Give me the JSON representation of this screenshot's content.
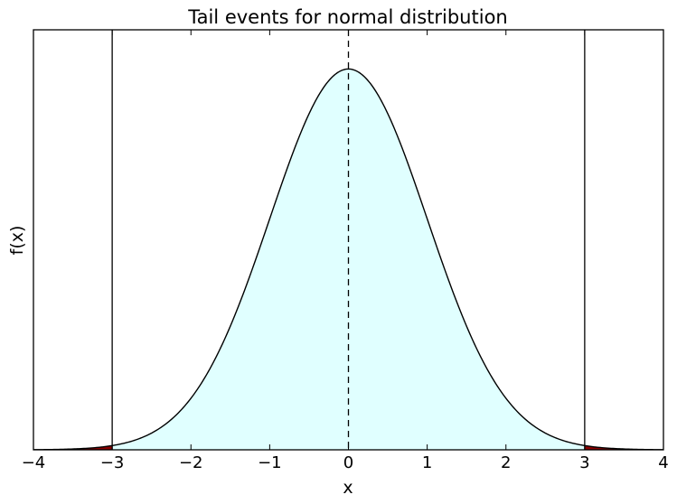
{
  "chart_data": {
    "type": "area",
    "title": "Tail events for normal distribution",
    "xlabel": "x",
    "ylabel": "f(x)",
    "xlim": [
      -4,
      4
    ],
    "ylim": [
      0,
      0.44
    ],
    "grid": false,
    "legend": "none",
    "x_ticks": [
      -4,
      -3,
      -2,
      -1,
      0,
      1,
      2,
      3,
      4
    ],
    "x_tick_labels": [
      "−4",
      "−3",
      "−2",
      "−1",
      "0",
      "1",
      "2",
      "3",
      "4"
    ],
    "y_ticks": [],
    "series": [
      {
        "distribution": "normal",
        "mean": 0,
        "sd": 1,
        "x": [
          -4,
          -3.5,
          -3,
          -2.5,
          -2,
          -1.5,
          -1,
          -0.5,
          0,
          0.5,
          1,
          1.5,
          2,
          2.5,
          3,
          3.5,
          4
        ],
        "y": [
          0.0001,
          0.0009,
          0.0044,
          0.0175,
          0.054,
          0.1295,
          0.242,
          0.3521,
          0.3989,
          0.3521,
          0.242,
          0.1295,
          0.054,
          0.0175,
          0.0044,
          0.0009,
          0.0001
        ]
      }
    ],
    "shaded_regions": [
      {
        "from": -3,
        "to": 3,
        "color": "#e0ffff"
      },
      {
        "from": -4,
        "to": -3,
        "color": "#8b0000"
      },
      {
        "from": 3,
        "to": 4,
        "color": "#8b0000"
      }
    ],
    "vertical_lines": [
      {
        "x": -3,
        "style": "solid"
      },
      {
        "x": 0,
        "style": "dashed"
      },
      {
        "x": 3,
        "style": "solid"
      }
    ],
    "colors": {
      "curve": "#000000",
      "center_fill": "#e0ffff",
      "tail_fill": "#8b0000",
      "frame": "#000000"
    }
  }
}
